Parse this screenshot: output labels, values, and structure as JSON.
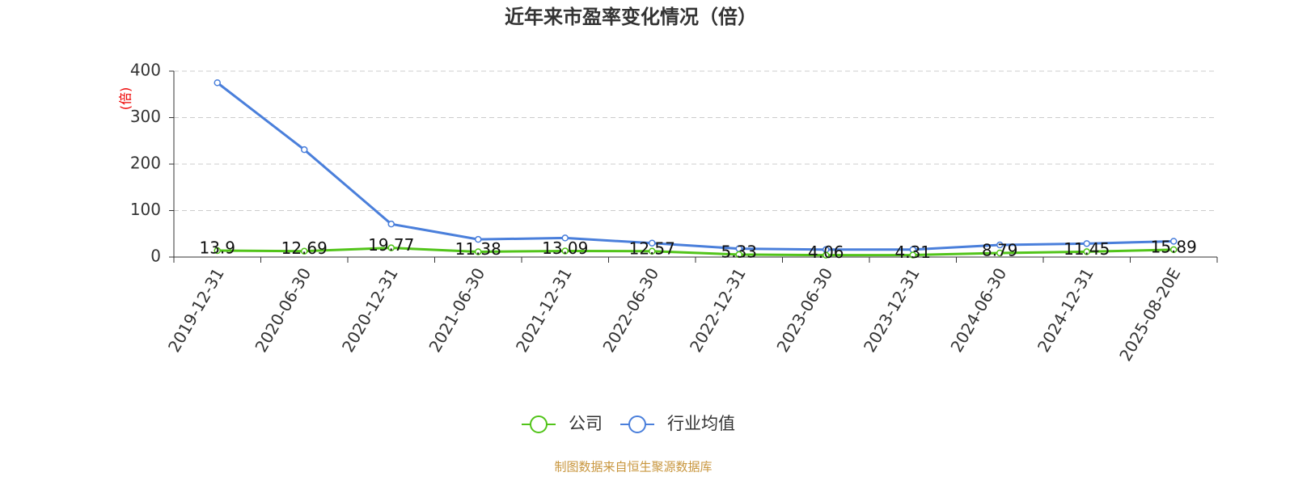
{
  "chart_data": {
    "type": "line",
    "title": "近年来市盈率变化情况（倍）",
    "y_label": "(倍)",
    "categories": [
      "2019-12-31",
      "2020-06-30",
      "2020-12-31",
      "2021-06-30",
      "2021-12-31",
      "2022-06-30",
      "2022-12-31",
      "2023-06-30",
      "2023-12-31",
      "2024-06-30",
      "2024-12-31",
      "2025-08-20E"
    ],
    "series": [
      {
        "name": "公司",
        "color": "#52c41a",
        "values": [
          13.9,
          12.69,
          19.77,
          11.38,
          13.09,
          12.57,
          5.33,
          4.06,
          4.31,
          8.79,
          11.45,
          15.89
        ]
      },
      {
        "name": "行业均值",
        "color": "#4a7fdb",
        "values": [
          375,
          231,
          71,
          38,
          41,
          30,
          18,
          16,
          16,
          26,
          29,
          34
        ]
      }
    ],
    "ylim": [
      0,
      400
    ],
    "yticks": [
      0,
      100,
      200,
      300,
      400
    ],
    "grid": true,
    "source": "制图数据来自恒生聚源数据库"
  }
}
